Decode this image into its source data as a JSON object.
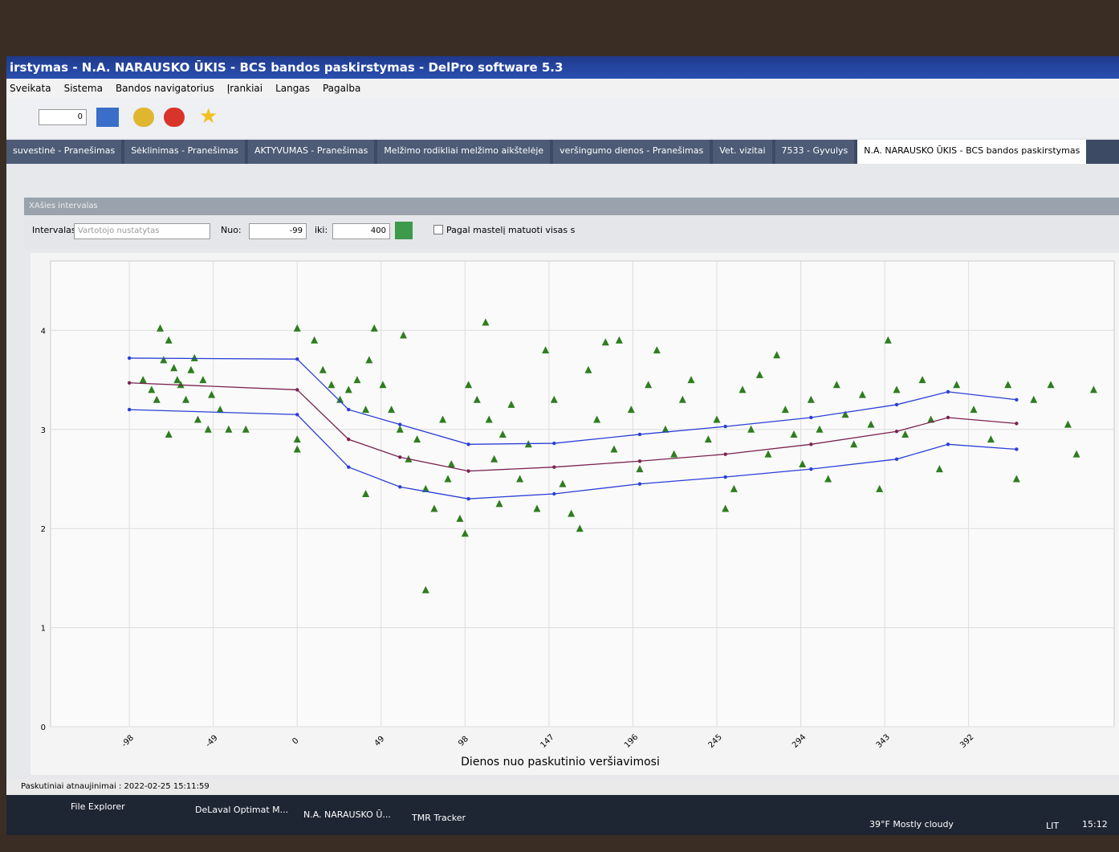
{
  "window": {
    "title": "irstymas - N.A. NARAUSKO ŪKIS - BCS bandos paskirstymas - DelPro software 5.3"
  },
  "menu": [
    "Sveikata",
    "Sistema",
    "Bandos navigatorius",
    "Įrankiai",
    "Langas",
    "Pagalba"
  ],
  "toolbar": {
    "counter": "0"
  },
  "tabs": [
    "suvestinė - Pranešimas",
    "Sėklinimas - Pranešimas",
    "AKTYVUMAS - Pranešimas",
    "Melžimo rodikliai melžimo aikštelėje",
    "veršingumo dienos - Pranešimas",
    "Vet. vizitai",
    "7533 - Gyvulys",
    "N.A. NARAUSKO ŪKIS - BCS bandos paskirstymas"
  ],
  "panel": {
    "header": "XAšies intervalas",
    "interval_label": "Intervalas:",
    "interval_value": "Vartotojo nustatytas",
    "from_label": "Nuo:",
    "from_value": "-99",
    "to_label": "iki:",
    "to_value": "400",
    "checkbox_label": "Pagal mastelį matuoti visas s"
  },
  "chart_data": {
    "type": "scatter",
    "x_label": "Dienos nuo paskutinio veršiavimosi",
    "xlim": [
      -144,
      477
    ],
    "ylim": [
      0,
      4.7
    ],
    "xticks": [
      -98,
      -49,
      0,
      49,
      98,
      147,
      196,
      245,
      294,
      343,
      392
    ],
    "yticks": [
      0,
      1,
      2,
      3,
      4
    ],
    "grid": true,
    "series": [
      {
        "color": "#2e7d1f",
        "marker": "triangle",
        "line": false,
        "x": [
          -80,
          -75,
          -78,
          -72,
          -70,
          -68,
          -65,
          -82,
          -60,
          -55,
          -50,
          -45,
          -40,
          -75,
          -30,
          -85,
          -62,
          -58,
          -90,
          -52,
          0,
          0,
          0,
          10,
          15,
          20,
          25,
          30,
          35,
          40,
          42,
          45,
          50,
          55,
          60,
          62,
          65,
          70,
          40,
          75,
          80,
          85,
          88,
          90,
          95,
          100,
          98,
          105,
          110,
          112,
          115,
          118,
          120,
          125,
          130,
          135,
          140,
          145,
          150,
          155,
          160,
          165,
          170,
          175,
          180,
          185,
          188,
          195,
          200,
          205,
          210,
          215,
          220,
          225,
          230,
          240,
          245,
          250,
          255,
          260,
          265,
          270,
          275,
          280,
          285,
          290,
          295,
          300,
          305,
          310,
          315,
          320,
          325,
          330,
          335,
          340,
          345,
          350,
          355,
          365,
          370,
          375,
          385,
          395,
          405,
          415,
          420,
          430,
          440,
          450,
          455,
          465,
          75
        ],
        "values": [
          4.02,
          3.9,
          3.7,
          3.62,
          3.5,
          3.45,
          3.3,
          3.3,
          3.72,
          3.5,
          3.35,
          3.2,
          3.0,
          2.95,
          3.0,
          3.4,
          3.6,
          3.1,
          3.5,
          3.0,
          4.02,
          2.9,
          2.8,
          3.9,
          3.6,
          3.45,
          3.3,
          3.4,
          3.5,
          3.2,
          3.7,
          4.02,
          3.45,
          3.2,
          3.0,
          3.95,
          2.7,
          2.9,
          2.35,
          2.4,
          2.2,
          3.1,
          2.5,
          2.65,
          2.1,
          3.45,
          1.95,
          3.3,
          4.08,
          3.1,
          2.7,
          2.25,
          2.95,
          3.25,
          2.5,
          2.85,
          2.2,
          3.8,
          3.3,
          2.45,
          2.15,
          2.0,
          3.6,
          3.1,
          3.88,
          2.8,
          3.9,
          3.2,
          2.6,
          3.45,
          3.8,
          3.0,
          2.75,
          3.3,
          3.5,
          2.9,
          3.1,
          2.2,
          2.4,
          3.4,
          3.0,
          3.55,
          2.75,
          3.75,
          3.2,
          2.95,
          2.65,
          3.3,
          3.0,
          2.5,
          3.45,
          3.15,
          2.85,
          3.35,
          3.05,
          2.4,
          3.9,
          3.4,
          2.95,
          3.5,
          3.1,
          2.6,
          3.45,
          3.2,
          2.9,
          3.45,
          2.5,
          3.3,
          3.45,
          3.05,
          2.75,
          3.4,
          1.38
        ]
      },
      {
        "color": "#2b3fd6",
        "marker": "dot",
        "line": true,
        "x": [
          -98,
          0,
          30,
          60,
          100,
          150,
          200,
          250,
          300,
          350,
          380,
          420
        ],
        "values": [
          3.72,
          3.71,
          3.2,
          3.05,
          2.85,
          2.86,
          2.95,
          3.03,
          3.12,
          3.25,
          3.38,
          3.3
        ]
      },
      {
        "color": "#7a2350",
        "marker": "dot",
        "line": true,
        "x": [
          -98,
          0,
          30,
          60,
          100,
          150,
          200,
          250,
          300,
          350,
          380,
          420
        ],
        "values": [
          3.47,
          3.4,
          2.9,
          2.72,
          2.58,
          2.62,
          2.68,
          2.75,
          2.85,
          2.98,
          3.12,
          3.06
        ]
      },
      {
        "color": "#2b3fd6",
        "marker": "dot",
        "line": true,
        "x": [
          -98,
          0,
          30,
          60,
          100,
          150,
          200,
          250,
          300,
          350,
          380,
          420
        ],
        "values": [
          3.2,
          3.15,
          2.62,
          2.42,
          2.3,
          2.35,
          2.45,
          2.52,
          2.6,
          2.7,
          2.85,
          2.8
        ]
      }
    ]
  },
  "status": {
    "text": "Paskutiniai atnaujinimai : 2022-02-25 15:11:59"
  },
  "taskbar": {
    "apps": [
      "File Explorer",
      "DeLaval Optimat M...",
      "N.A. NARAUSKO Ū...",
      "TMR Tracker"
    ],
    "weather": "39°F  Mostly cloudy",
    "lang": "LIT",
    "time": "15:12"
  }
}
